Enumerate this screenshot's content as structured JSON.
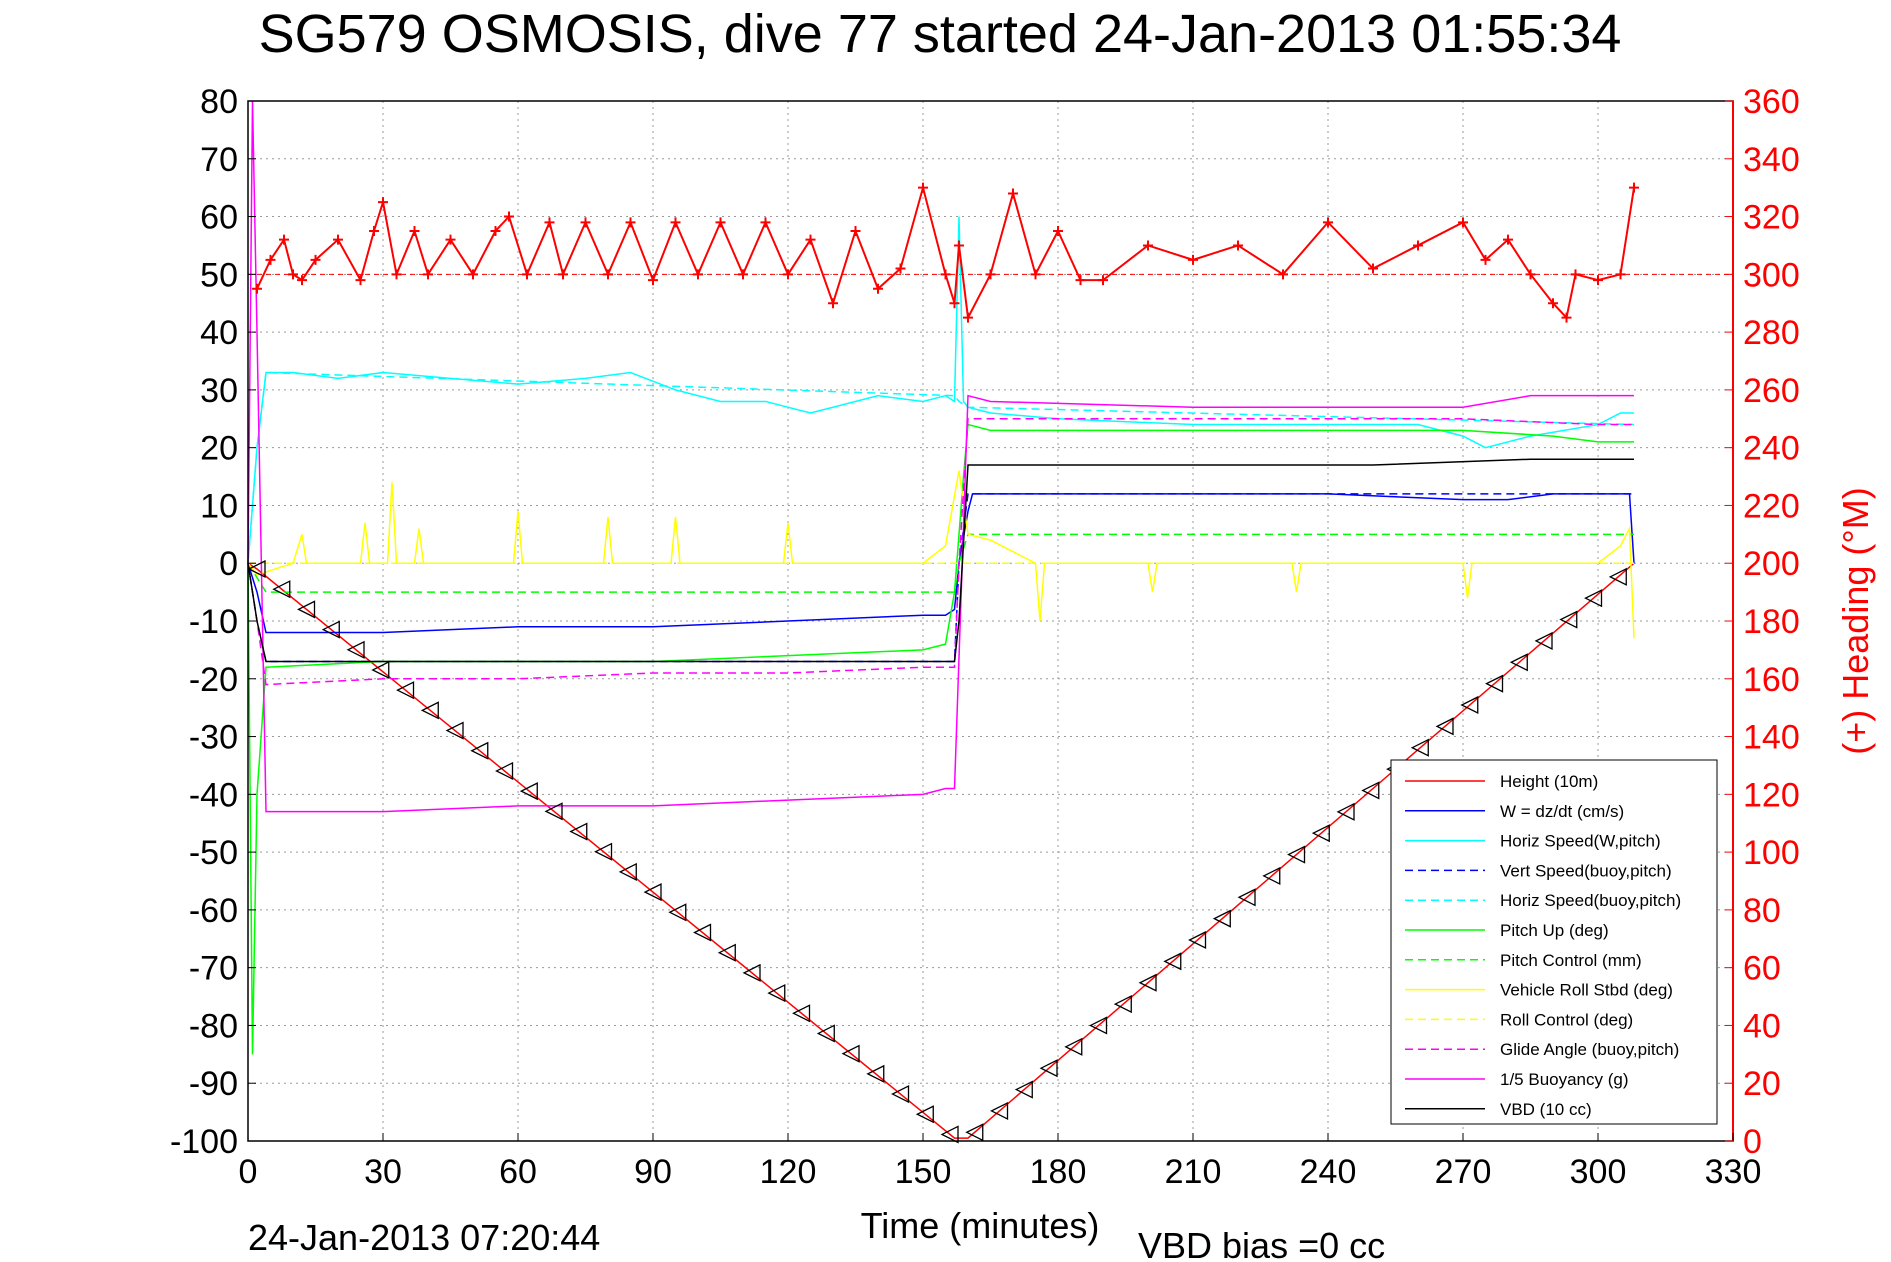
{
  "chart_data": {
    "type": "line",
    "title": "SG579 OSMOSIS, dive 77 started 24-Jan-2013 01:55:34",
    "xlabel": "Time (minutes)",
    "ylabel_right": "(+) Heading (°M)",
    "footer_left": "24-Jan-2013 07:20:44",
    "footer_right": "VBD bias =0 cc",
    "xlim": [
      0,
      330
    ],
    "ylim": [
      -100,
      80
    ],
    "ylim_right": [
      0,
      360
    ],
    "xticks": [
      0,
      30,
      60,
      90,
      120,
      150,
      180,
      210,
      240,
      270,
      300,
      330
    ],
    "yticks": [
      -100,
      -90,
      -80,
      -70,
      -60,
      -50,
      -40,
      -30,
      -20,
      -10,
      0,
      10,
      20,
      30,
      40,
      50,
      60,
      70,
      80
    ],
    "yticks_right": [
      0,
      20,
      40,
      60,
      80,
      100,
      120,
      140,
      160,
      180,
      200,
      220,
      240,
      260,
      280,
      300,
      320,
      340,
      360
    ],
    "grid": true,
    "legend_position": "bottom-right",
    "colors": {
      "red": "#ff0000",
      "blue": "#0000ff",
      "cyan": "#00ffff",
      "green": "#00ff00",
      "yellow": "#ffff00",
      "magenta": "#ff00ff",
      "black": "#000000"
    },
    "heading_reference": 300,
    "series": [
      {
        "name": "Height (10m)",
        "color": "#ff0000",
        "style": "solid",
        "x": [
          0,
          2,
          157,
          160,
          308
        ],
        "y": [
          0,
          -1,
          -99.5,
          -99.5,
          0
        ]
      },
      {
        "name": "W = dz/dt (cm/s)",
        "color": "#0000ff",
        "style": "solid",
        "x": [
          0,
          2,
          4,
          10,
          30,
          60,
          90,
          120,
          150,
          155,
          157,
          158,
          160,
          161,
          165,
          180,
          210,
          240,
          270,
          280,
          290,
          300,
          307,
          308
        ],
        "y": [
          0,
          -5,
          -12,
          -12,
          -12,
          -11,
          -11,
          -10,
          -9,
          -9,
          -8,
          0,
          9,
          12,
          12,
          12,
          12,
          12,
          11,
          11,
          12,
          12,
          12,
          0
        ]
      },
      {
        "name": "Horiz Speed(W,pitch)",
        "color": "#00ffff",
        "style": "solid",
        "x": [
          0,
          2,
          4,
          10,
          20,
          30,
          45,
          60,
          75,
          85,
          95,
          105,
          115,
          125,
          130,
          140,
          150,
          155,
          157,
          158,
          159,
          160,
          165,
          180,
          210,
          240,
          260,
          270,
          275,
          285,
          300,
          305,
          308
        ],
        "y": [
          0,
          20,
          33,
          33,
          32,
          33,
          32,
          31,
          32,
          33,
          30,
          28,
          28,
          26,
          27,
          29,
          28,
          29,
          28,
          60,
          28,
          27,
          26,
          25,
          24,
          24,
          24,
          22,
          20,
          22,
          24,
          26,
          26
        ]
      },
      {
        "name": "Vert Speed(buoy,pitch)",
        "color": "#0000ff",
        "style": "dashed",
        "x": [
          0,
          2,
          4,
          157,
          158,
          160,
          308
        ],
        "y": [
          0,
          -10,
          -17,
          -17,
          0,
          12,
          12
        ]
      },
      {
        "name": "Horiz Speed(buoy,pitch)",
        "color": "#00ffff",
        "style": "dashed",
        "x": [
          0,
          2,
          4,
          157,
          158,
          160,
          308
        ],
        "y": [
          0,
          20,
          33,
          29,
          28,
          27,
          24
        ]
      },
      {
        "name": "Pitch Up (deg)",
        "color": "#00ff00",
        "style": "solid",
        "x": [
          0,
          1,
          2,
          4,
          30,
          60,
          90,
          120,
          150,
          155,
          157,
          159,
          160,
          165,
          180,
          210,
          240,
          270,
          290,
          300,
          308
        ],
        "y": [
          0,
          -85,
          -40,
          -18,
          -17,
          -17,
          -17,
          -16,
          -15,
          -14,
          -5,
          15,
          24,
          23,
          23,
          23,
          23,
          23,
          22,
          21,
          21
        ]
      },
      {
        "name": "Pitch Control (mm)",
        "color": "#00ff00",
        "style": "dashed",
        "x": [
          0,
          4,
          157,
          158,
          160,
          308
        ],
        "y": [
          0,
          -5,
          -5,
          0,
          5,
          5
        ]
      },
      {
        "name": "Vehicle Roll Stbd (deg)",
        "color": "#ffff00",
        "style": "solid",
        "x": [
          0,
          2,
          10,
          12,
          13,
          25,
          26,
          27,
          31,
          32,
          33,
          37,
          38,
          39,
          59,
          60,
          61,
          79,
          80,
          81,
          94,
          95,
          96,
          119,
          120,
          121,
          150,
          155,
          158,
          160,
          165,
          175,
          176,
          177,
          200,
          201,
          202,
          232,
          233,
          234,
          270,
          271,
          272,
          300,
          305,
          307,
          308
        ],
        "y": [
          0,
          -2,
          0,
          5,
          0,
          0,
          7,
          0,
          0,
          14,
          0,
          0,
          6,
          0,
          0,
          9,
          0,
          0,
          8,
          0,
          0,
          8,
          0,
          0,
          7,
          0,
          0,
          3,
          16,
          5,
          4,
          0,
          -10,
          0,
          0,
          -5,
          0,
          0,
          -5,
          0,
          0,
          -6,
          0,
          0,
          3,
          6,
          -13
        ]
      },
      {
        "name": "Roll Control (deg)",
        "color": "#ffff00",
        "style": "dashed",
        "x": [
          0,
          2,
          157,
          160,
          308
        ],
        "y": [
          0,
          0,
          0,
          0,
          0
        ]
      },
      {
        "name": "Glide Angle (buoy,pitch)",
        "color": "#ff00ff",
        "style": "dashed",
        "x": [
          0,
          2,
          4,
          30,
          60,
          90,
          120,
          150,
          157,
          158,
          160,
          165,
          210,
          270,
          300,
          308
        ],
        "y": [
          0,
          -10,
          -21,
          -20,
          -20,
          -19,
          -19,
          -18,
          -18,
          0,
          25,
          25,
          25,
          25,
          24,
          24
        ]
      },
      {
        "name": "1/5 Buoyancy (g)",
        "color": "#ff00ff",
        "style": "solid",
        "x": [
          0,
          1,
          2,
          4,
          10,
          20,
          30,
          60,
          90,
          120,
          150,
          155,
          157,
          160,
          165,
          210,
          270,
          285,
          300,
          308
        ],
        "y": [
          0,
          80,
          40,
          -43,
          -43,
          -43,
          -43,
          -42,
          -42,
          -41,
          -40,
          -39,
          -39,
          29,
          28,
          27,
          27,
          29,
          29,
          29
        ]
      },
      {
        "name": "VBD (10 cc)",
        "color": "#000000",
        "style": "solid",
        "x": [
          0,
          2,
          4,
          157,
          158,
          160,
          165,
          210,
          250,
          285,
          300,
          308
        ],
        "y": [
          0,
          -10,
          -17,
          -17,
          -10,
          17,
          17,
          17,
          17,
          18,
          18,
          18
        ]
      },
      {
        "name": "Heading",
        "color": "#ff0000",
        "style": "marker",
        "axis": "right",
        "x": [
          2,
          5,
          8,
          10,
          12,
          15,
          20,
          25,
          28,
          30,
          33,
          37,
          40,
          45,
          50,
          55,
          58,
          62,
          67,
          70,
          75,
          80,
          85,
          90,
          95,
          100,
          105,
          110,
          115,
          120,
          125,
          130,
          135,
          140,
          145,
          150,
          155,
          157,
          158,
          160,
          165,
          170,
          175,
          180,
          185,
          190,
          200,
          210,
          220,
          230,
          240,
          250,
          260,
          270,
          275,
          280,
          285,
          290,
          293,
          295,
          300,
          305,
          308
        ],
        "y": [
          295,
          305,
          312,
          300,
          298,
          305,
          312,
          298,
          315,
          325,
          300,
          315,
          300,
          312,
          300,
          315,
          320,
          300,
          318,
          300,
          318,
          300,
          318,
          298,
          318,
          300,
          318,
          300,
          318,
          300,
          312,
          290,
          315,
          295,
          302,
          330,
          300,
          290,
          310,
          285,
          300,
          328,
          300,
          315,
          298,
          298,
          310,
          305,
          310,
          300,
          318,
          302,
          310,
          318,
          305,
          312,
          300,
          290,
          285,
          300,
          298,
          300,
          330
        ]
      }
    ]
  }
}
